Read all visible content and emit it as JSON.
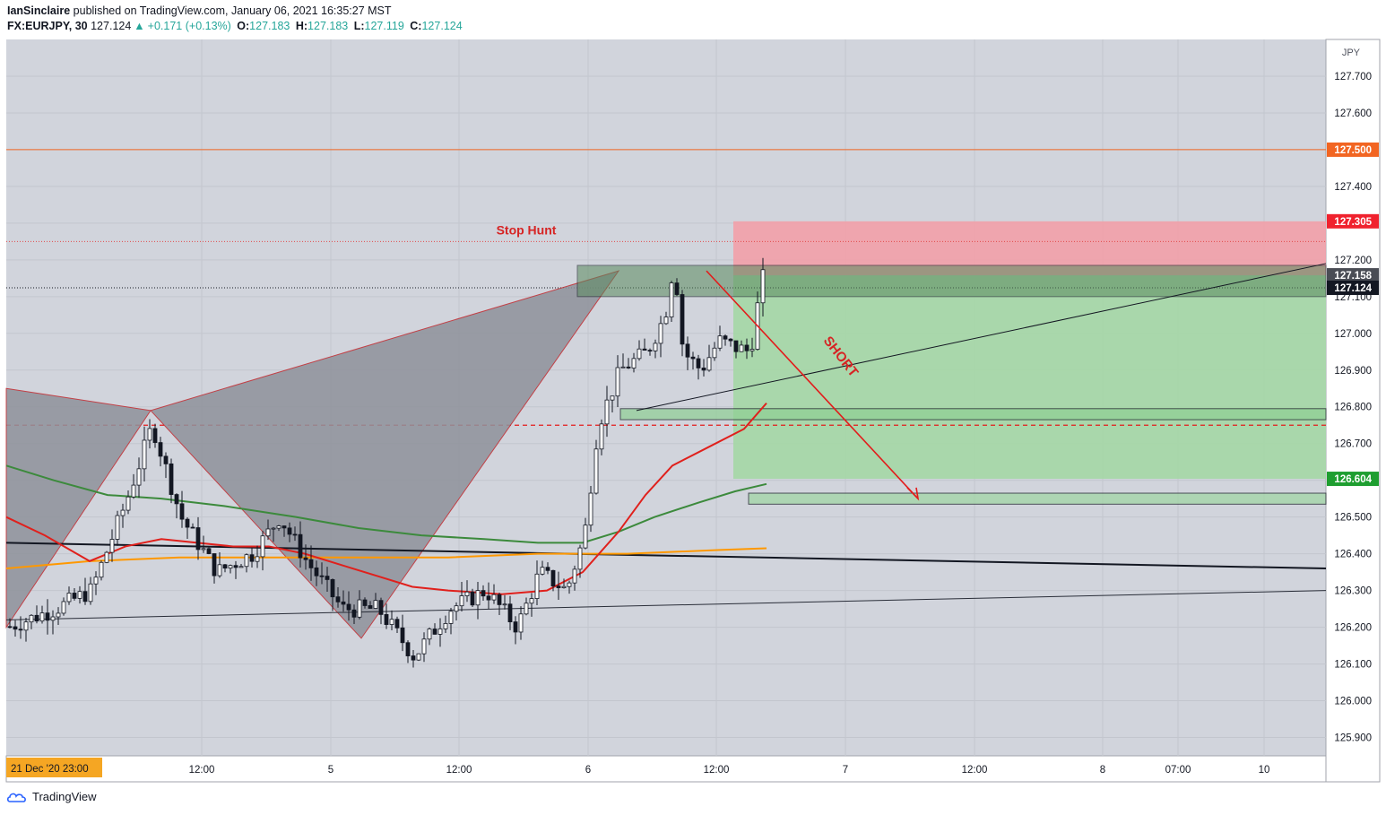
{
  "header": {
    "author": "IanSinclaire",
    "published": "published on TradingView.com, January 06, 2021 16:35:27 MST",
    "symbol": "FX:EURJPY, 30",
    "last": "127.124",
    "arrow": "▲",
    "change": "+0.171 (+0.13%)",
    "o_label": "O:",
    "o_value": "127.183",
    "h_label": "H:",
    "h_value": "127.183",
    "l_label": "L:",
    "l_value": "127.119",
    "c_label": "C:",
    "c_value": "127.124"
  },
  "footer": {
    "brand": "TradingView"
  },
  "colors": {
    "plot_bg": "#d1d4dc",
    "grid": "#c3c6ce",
    "ma_red": "#e0201c",
    "ma_green": "#3c8a3c",
    "ma_orange": "#ff9800",
    "resistance": "#f26522",
    "stop_zone": "#f2a0a8",
    "target_zone": "#a6d7a8",
    "pattern_fill": "#8f929b",
    "pattern_edge": "#c0272d",
    "short_arrow": "#e31b1b",
    "label_green": "#1e9e30",
    "label_red": "#f0222e"
  },
  "chart_data": {
    "type": "candlestick",
    "currency": "JPY",
    "y_range": [
      125.85,
      127.8
    ],
    "y_ticks": [
      "127.700",
      "127.600",
      "127.500",
      "127.400",
      "127.300",
      "127.200",
      "127.100",
      "127.000",
      "126.900",
      "126.800",
      "126.700",
      "126.600",
      "126.500",
      "126.400",
      "126.300",
      "126.200",
      "126.100",
      "126.000",
      "125.900"
    ],
    "x_ticks": [
      "12:00",
      "5",
      "12:00",
      "6",
      "12:00",
      "7",
      "12:00",
      "8",
      "07:00",
      "10"
    ],
    "x_cursor_label": "21 Dec '20  23:00",
    "price_labels": {
      "resistance": "127.500",
      "stop": "127.305",
      "entry": "127.158",
      "last": "127.124",
      "target": "126.604"
    },
    "annotations": {
      "stop_hunt": "Stop Hunt",
      "short": "SHORT"
    },
    "levels": {
      "resistance": 127.5,
      "stop_dotted": 127.25,
      "last_dotted": 127.124,
      "red_dashed": 126.75,
      "stop_zone": [
        127.158,
        127.305
      ],
      "target_zone": [
        126.604,
        127.158
      ],
      "zone_top": [
        127.1,
        127.185
      ],
      "zone_mid": [
        126.765,
        126.795
      ],
      "zone_low": [
        126.535,
        126.565
      ]
    }
  }
}
